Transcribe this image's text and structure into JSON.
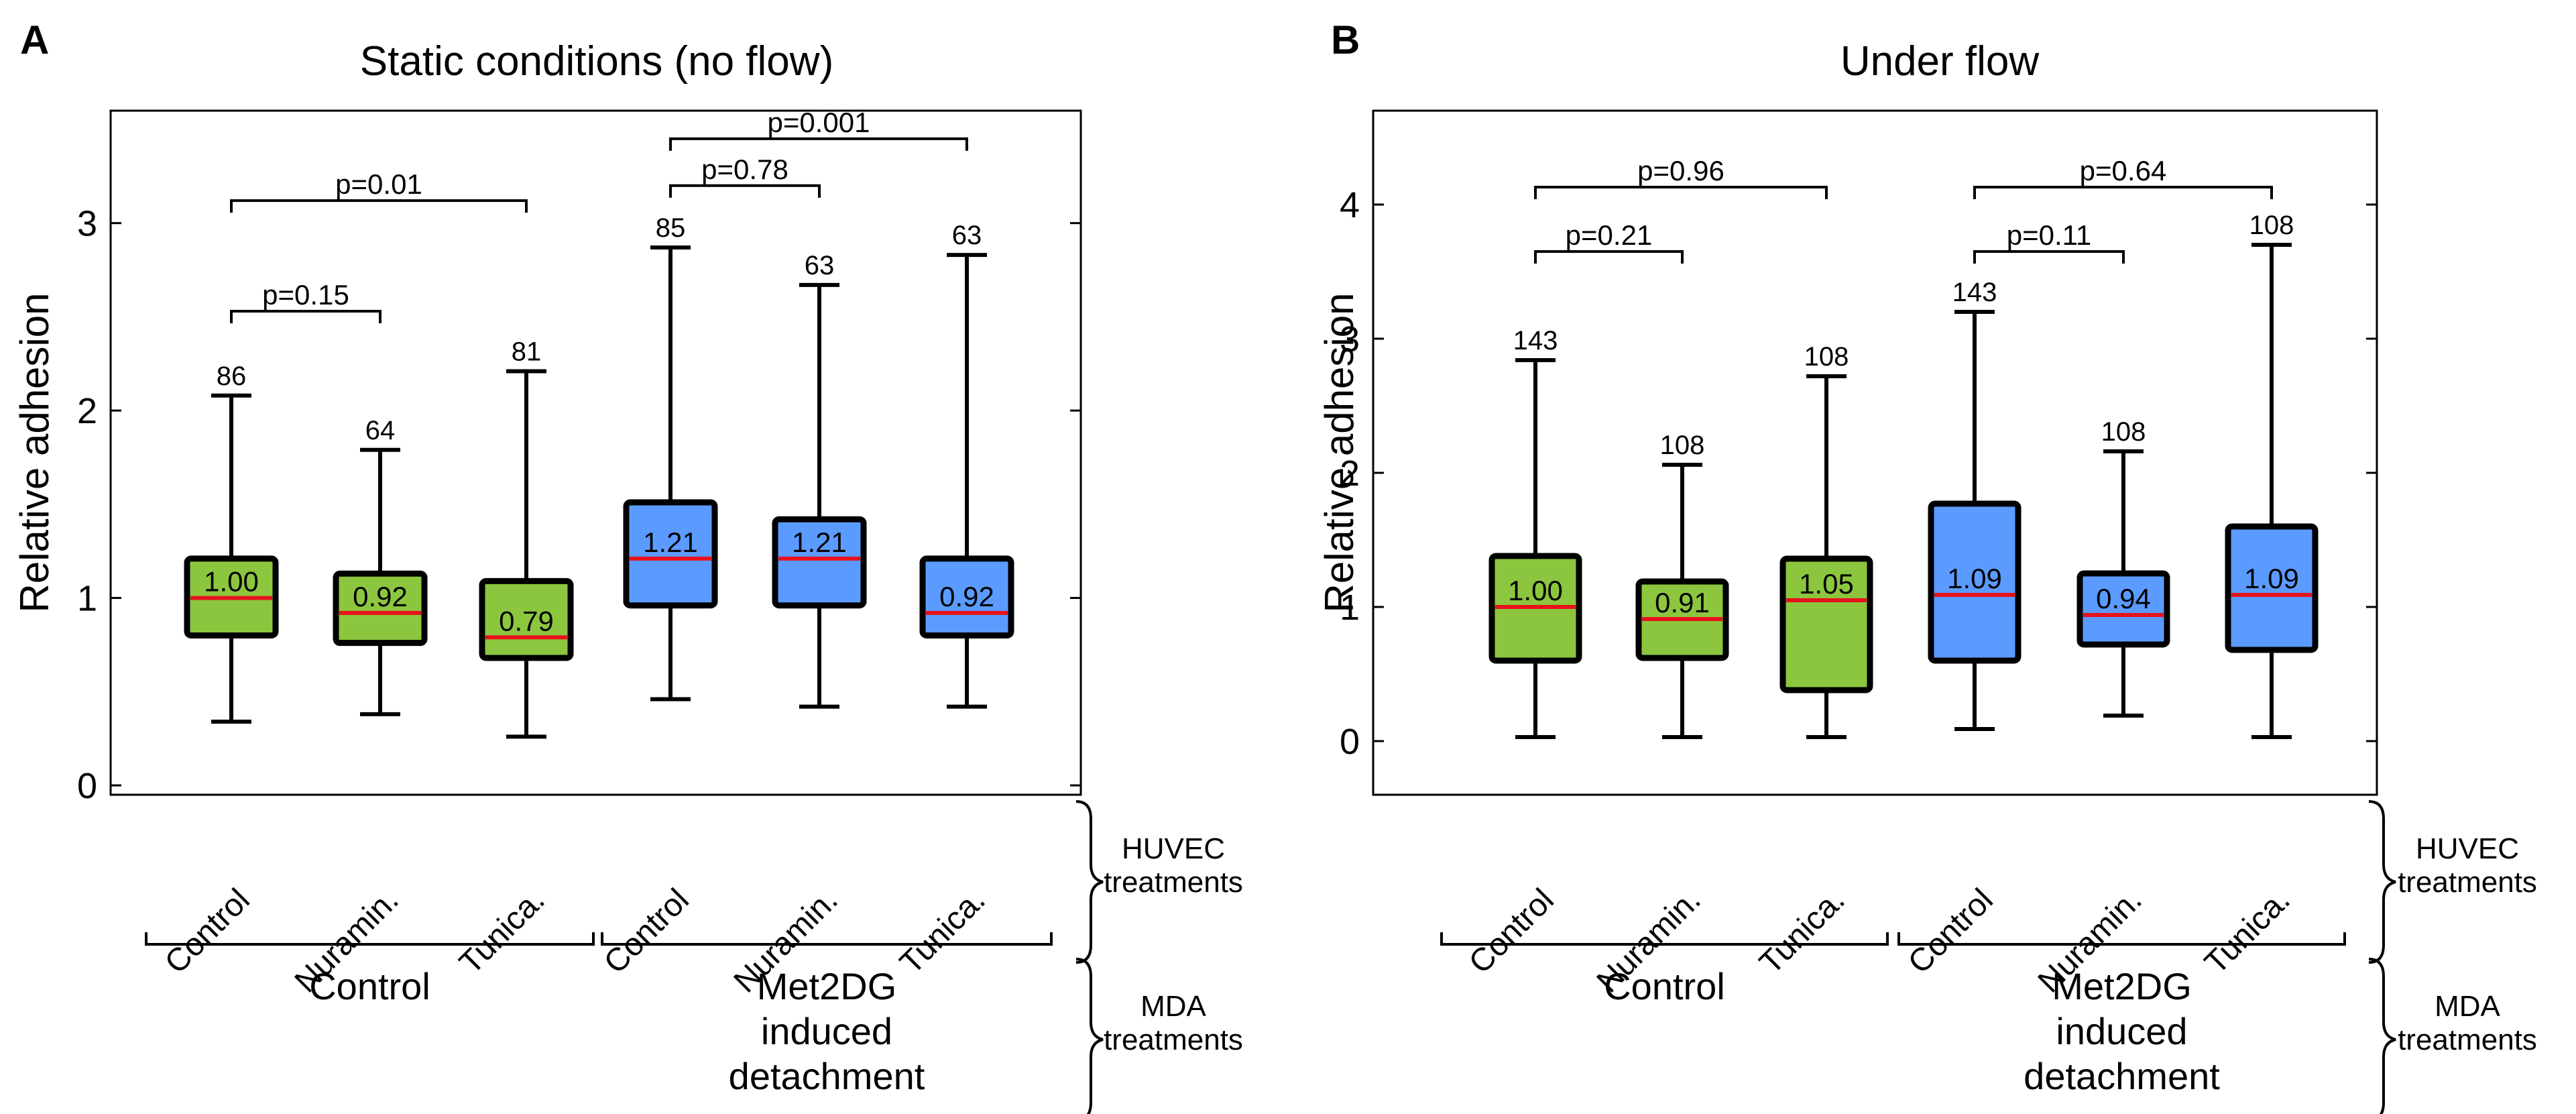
{
  "colors": {
    "control": "#8cc63f",
    "met2dg": "#5b9bff",
    "median": "#e8121b"
  },
  "side_labels": {
    "huvec": [
      "HUVEC",
      "treatments"
    ],
    "mda": [
      "MDA",
      "treatments"
    ]
  },
  "chart_data": [
    {
      "type": "boxplot",
      "panel": "A",
      "title": "Static conditions (no flow)",
      "ylabel": "Relative adhesion",
      "ylim": [
        -0.05,
        3.6
      ],
      "yticks": [
        0,
        1,
        2,
        3
      ],
      "categories": [
        "Control",
        "Nuramin.",
        "Tunica.",
        "Control",
        "Nuramin.",
        "Tunica."
      ],
      "groups": [
        {
          "label": [
            "Control"
          ],
          "color_key": "control",
          "indices": [
            0,
            1,
            2
          ]
        },
        {
          "label": [
            "Met2DG",
            "induced",
            "detachment"
          ],
          "color_key": "met2dg",
          "indices": [
            3,
            4,
            5
          ]
        }
      ],
      "boxes": [
        {
          "min": 0.34,
          "q1": 0.8,
          "median": 1.0,
          "q3": 1.21,
          "max": 2.08,
          "n": "86",
          "median_label": "1.00"
        },
        {
          "min": 0.38,
          "q1": 0.76,
          "median": 0.92,
          "q3": 1.13,
          "max": 1.79,
          "n": "64",
          "median_label": "0.92"
        },
        {
          "min": 0.26,
          "q1": 0.68,
          "median": 0.79,
          "q3": 1.09,
          "max": 2.21,
          "n": "81",
          "median_label": "0.79"
        },
        {
          "min": 0.46,
          "q1": 0.96,
          "median": 1.21,
          "q3": 1.51,
          "max": 2.87,
          "n": "85",
          "median_label": "1.21"
        },
        {
          "min": 0.42,
          "q1": 0.96,
          "median": 1.21,
          "q3": 1.42,
          "max": 2.67,
          "n": "63",
          "median_label": "1.21"
        },
        {
          "min": 0.42,
          "q1": 0.8,
          "median": 0.92,
          "q3": 1.21,
          "max": 2.83,
          "n": "63",
          "median_label": "0.92"
        }
      ],
      "comparisons": [
        {
          "from": 0,
          "to": 1,
          "y": 2.53,
          "label": "p=0.15"
        },
        {
          "from": 0,
          "to": 2,
          "y": 3.12,
          "label": "p=0.01"
        },
        {
          "from": 3,
          "to": 4,
          "y": 3.2,
          "label": "p=0.78"
        },
        {
          "from": 3,
          "to": 5,
          "y": 3.45,
          "label": "p=0.001"
        }
      ]
    },
    {
      "type": "boxplot",
      "panel": "B",
      "title": "Under flow",
      "ylabel": "Relative adhesion",
      "ylim": [
        -0.4,
        4.7
      ],
      "yticks": [
        0,
        1,
        2,
        3,
        4
      ],
      "categories": [
        "Control",
        "Nuramin.",
        "Tunica.",
        "Control",
        "Nuramin.",
        "Tunica."
      ],
      "groups": [
        {
          "label": [
            "Control"
          ],
          "color_key": "control",
          "indices": [
            0,
            1,
            2
          ]
        },
        {
          "label": [
            "Met2DG",
            "induced",
            "detachment"
          ],
          "color_key": "met2dg",
          "indices": [
            3,
            4,
            5
          ]
        }
      ],
      "boxes": [
        {
          "min": 0.03,
          "q1": 0.6,
          "median": 1.0,
          "q3": 1.38,
          "max": 2.84,
          "n": "143",
          "median_label": "1.00"
        },
        {
          "min": 0.03,
          "q1": 0.62,
          "median": 0.91,
          "q3": 1.19,
          "max": 2.06,
          "n": "108",
          "median_label": "0.91"
        },
        {
          "min": 0.03,
          "q1": 0.38,
          "median": 1.05,
          "q3": 1.36,
          "max": 2.72,
          "n": "108",
          "median_label": "1.05"
        },
        {
          "min": 0.09,
          "q1": 0.6,
          "median": 1.09,
          "q3": 1.77,
          "max": 3.2,
          "n": "143",
          "median_label": "1.09"
        },
        {
          "min": 0.19,
          "q1": 0.72,
          "median": 0.94,
          "q3": 1.25,
          "max": 2.16,
          "n": "108",
          "median_label": "0.94"
        },
        {
          "min": 0.03,
          "q1": 0.68,
          "median": 1.09,
          "q3": 1.6,
          "max": 3.7,
          "n": "108",
          "median_label": "1.09"
        }
      ],
      "comparisons": [
        {
          "from": 0,
          "to": 1,
          "y": 3.65,
          "label": "p=0.21"
        },
        {
          "from": 0,
          "to": 2,
          "y": 4.13,
          "label": "p=0.96"
        },
        {
          "from": 3,
          "to": 4,
          "y": 3.65,
          "label": "p=0.11"
        },
        {
          "from": 3,
          "to": 5,
          "y": 4.13,
          "label": "p=0.64"
        }
      ]
    }
  ]
}
